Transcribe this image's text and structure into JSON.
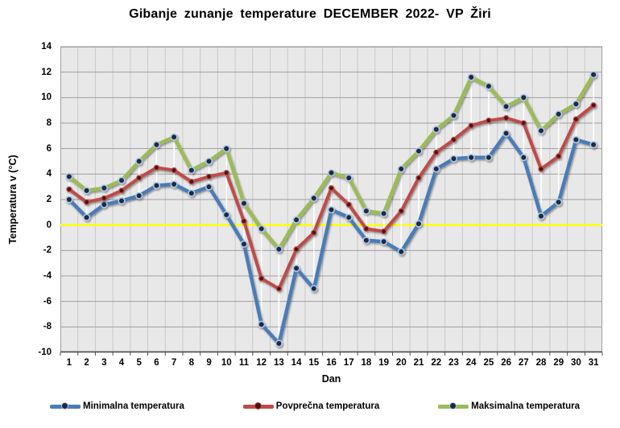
{
  "title": "Gibanje zunanje temperature DECEMBER 2022- VP Žiri",
  "chart_data": {
    "type": "line",
    "title": "Gibanje zunanje temperature DECEMBER 2022- VP Žiri",
    "xlabel": "Dan",
    "ylabel": "Temperatura v (°C)",
    "ylim": [
      -10,
      14
    ],
    "ytick_step": 2,
    "grid": true,
    "legend_position": "bottom",
    "plot_bg": "#E8E8E8",
    "grid_color_h": "#9E9E9E",
    "grid_color_v": "#C9C9C9",
    "axis_color": "#4D4D4D",
    "zero_line_color": "#FFFF00",
    "highlow_line_color": "#FFFFFF",
    "categories": [
      1,
      2,
      3,
      4,
      5,
      6,
      7,
      8,
      9,
      10,
      11,
      12,
      13,
      14,
      15,
      16,
      17,
      18,
      19,
      20,
      21,
      22,
      23,
      24,
      25,
      26,
      27,
      28,
      29,
      30,
      31
    ],
    "series": [
      {
        "name": "Minimalna temperatura",
        "color": "#4A7CB8",
        "marker_fill": "#1C2A43",
        "marker_ring": "#AFC7E4",
        "values": [
          2.0,
          0.6,
          1.6,
          1.9,
          2.3,
          3.1,
          3.2,
          2.5,
          3.0,
          0.8,
          -1.5,
          -7.8,
          -9.3,
          -3.4,
          -5.0,
          1.2,
          0.6,
          -1.2,
          -1.3,
          -2.1,
          0.1,
          4.4,
          5.2,
          5.3,
          5.3,
          7.2,
          5.3,
          0.7,
          1.8,
          6.7,
          6.3
        ]
      },
      {
        "name": "Povprečna temperatura",
        "color": "#BE4B48",
        "marker_fill": "#4A1412",
        "marker_ring": "#B94A48",
        "values": [
          2.8,
          1.8,
          2.1,
          2.7,
          3.7,
          4.5,
          4.3,
          3.4,
          3.8,
          4.1,
          0.3,
          -4.2,
          -5.0,
          -1.9,
          -0.6,
          2.9,
          1.6,
          -0.3,
          -0.5,
          1.1,
          3.7,
          5.7,
          6.7,
          7.8,
          8.2,
          8.4,
          8.0,
          4.4,
          5.4,
          8.3,
          9.4
        ]
      },
      {
        "name": "Maksimalna temperatura",
        "color": "#9BBB59",
        "marker_fill": "#1C2A43",
        "marker_ring": "#AFC7E4",
        "values": [
          3.8,
          2.7,
          2.9,
          3.5,
          5.0,
          6.3,
          6.9,
          4.3,
          5.0,
          6.0,
          1.7,
          -0.3,
          -1.9,
          0.4,
          2.1,
          4.1,
          3.7,
          1.1,
          0.9,
          4.4,
          5.8,
          7.5,
          8.6,
          11.6,
          10.9,
          9.3,
          10.0,
          7.4,
          8.7,
          9.5,
          11.8
        ]
      }
    ]
  }
}
